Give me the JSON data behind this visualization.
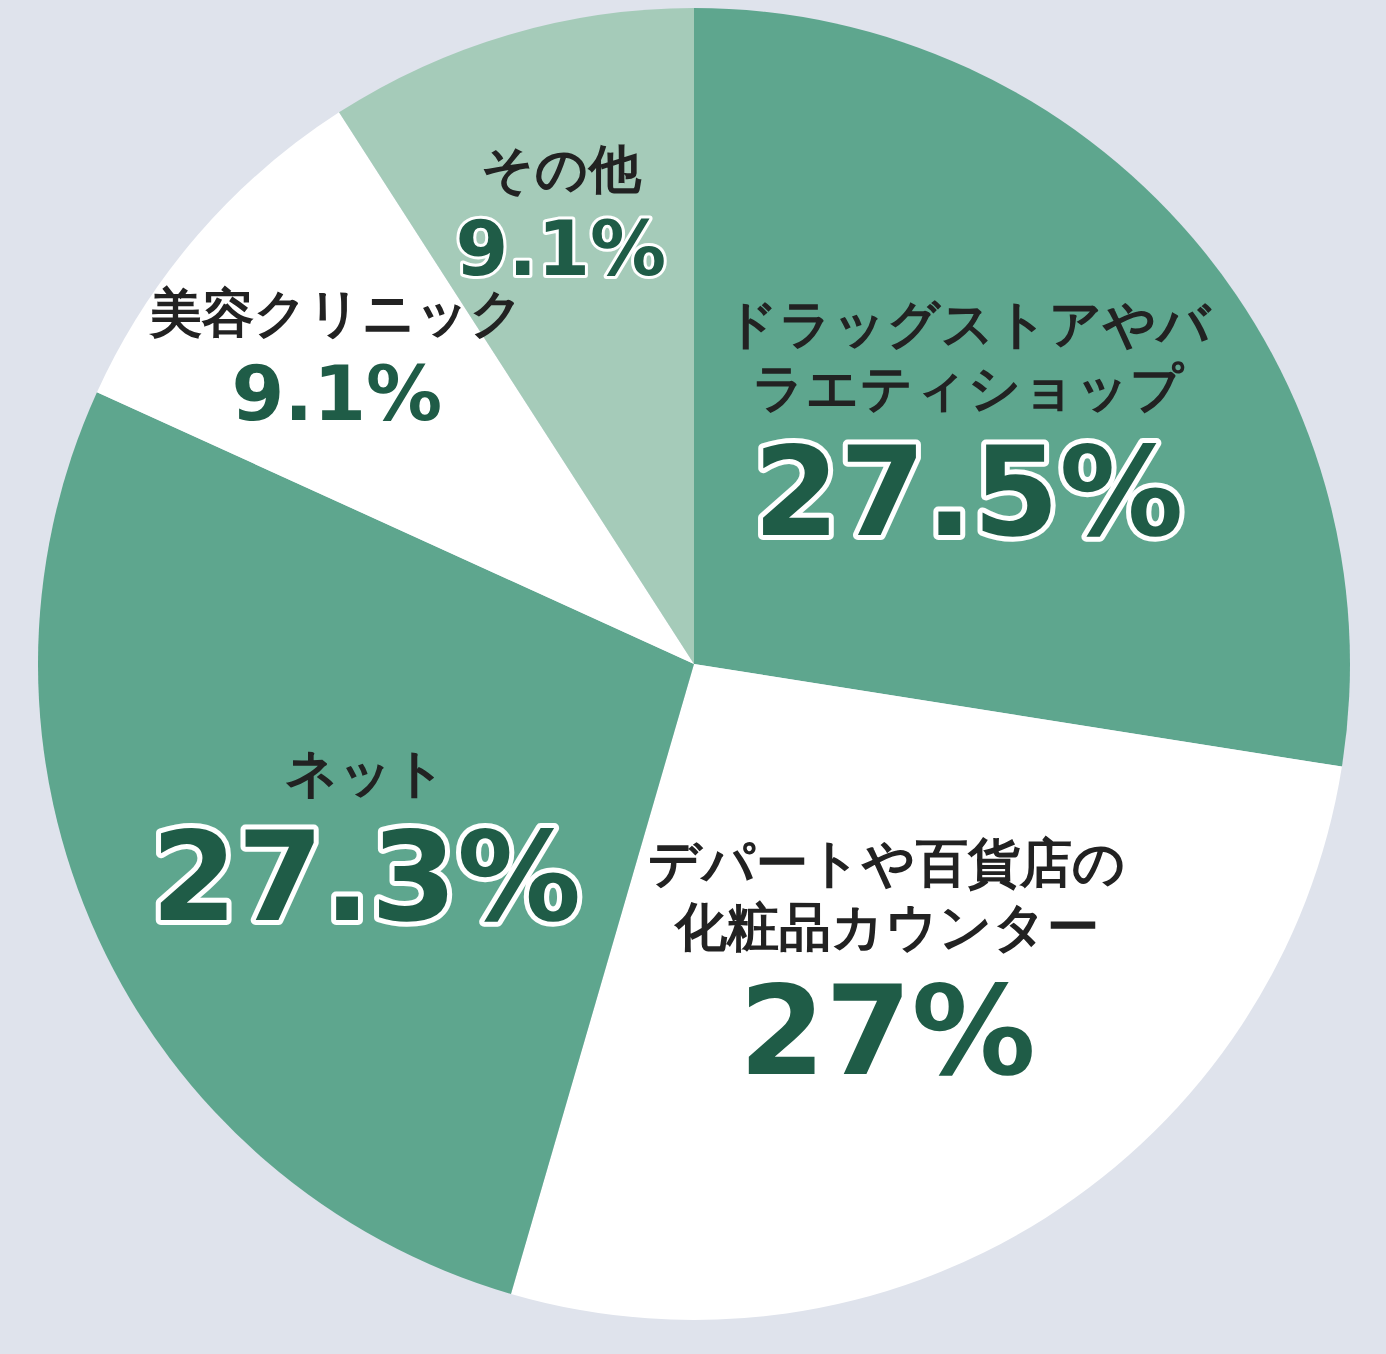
{
  "chart_data": {
    "type": "pie",
    "categories": [
      "ドラッグストアやバラエティショップ",
      "デパートや百貨店の化粧品カウンター",
      "ネット",
      "美容クリニック",
      "その他"
    ],
    "values": [
      27.5,
      27,
      27.3,
      9.1,
      9.1
    ],
    "value_labels": [
      "27.5%",
      "27%",
      "27.3%",
      "9.1%",
      "9.1%"
    ],
    "colors": [
      "#5ea68e",
      "#ffffff",
      "#5ea68e",
      "#ffffff",
      "#a5cbb9"
    ]
  }
}
